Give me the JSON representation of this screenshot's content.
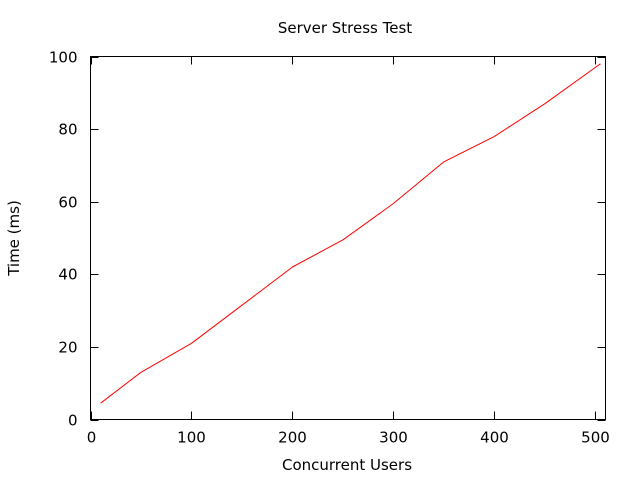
{
  "chart_data": {
    "type": "line",
    "title": "Server Stress Test",
    "xlabel": "Concurrent Users",
    "ylabel": "Time (ms)",
    "xlim": [
      0,
      510
    ],
    "ylim": [
      0,
      100
    ],
    "x_ticks": [
      0,
      100,
      200,
      300,
      400,
      500
    ],
    "y_ticks": [
      0,
      20,
      40,
      60,
      80,
      100
    ],
    "grid": false,
    "legend": "none",
    "series": [
      {
        "color": "#ff0000",
        "x": [
          10,
          50,
          100,
          150,
          200,
          250,
          300,
          350,
          400,
          450,
          500,
          505
        ],
        "y": [
          4.5,
          13,
          21,
          31.5,
          42,
          49.5,
          59.5,
          71,
          78,
          87,
          97,
          98
        ]
      }
    ]
  }
}
